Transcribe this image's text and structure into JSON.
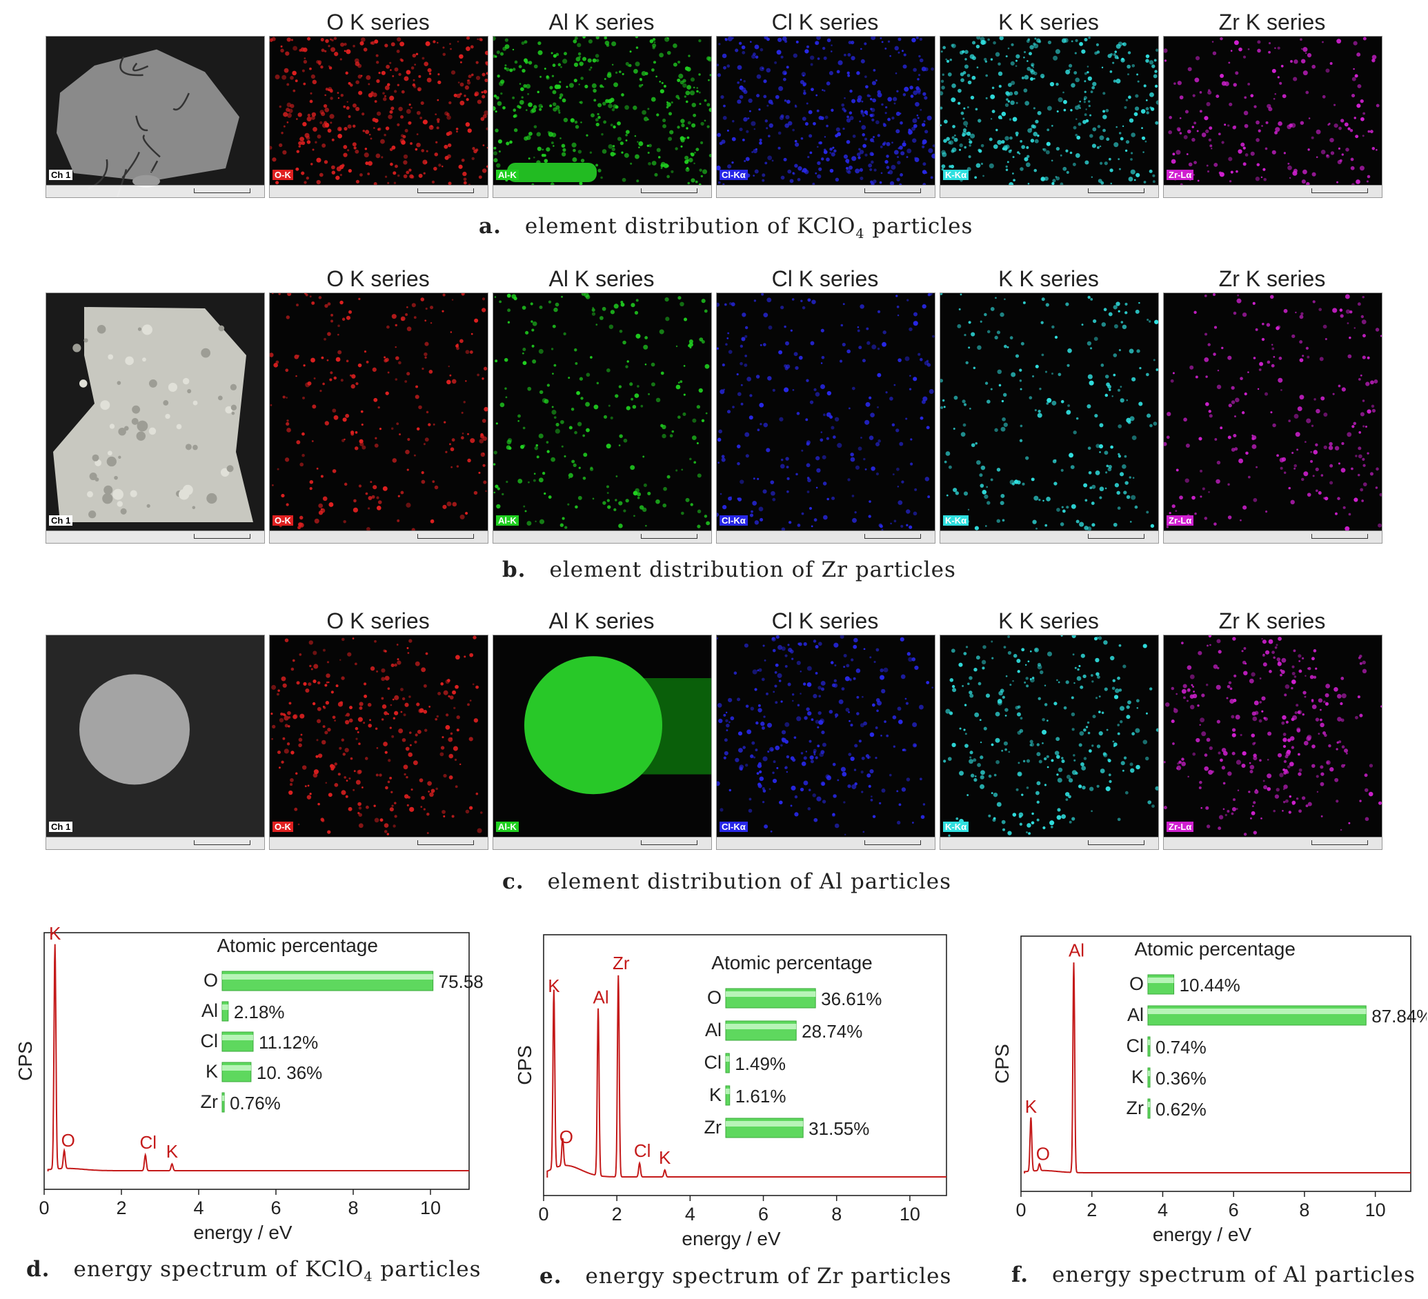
{
  "column_titles": [
    "O K series",
    "Al K series",
    "Cl K series",
    "K K series",
    "Zr K series"
  ],
  "panels": [
    {
      "label": "a.",
      "caption_pre": "element distribution of KClO",
      "caption_sub": "4",
      "caption_post": " particles",
      "tile_labels": [
        "Ch 1",
        "O-K",
        "Al-K",
        "Cl-Kα",
        "K-Kα",
        "Zr-Lα"
      ]
    },
    {
      "label": "b.",
      "caption_pre": "element distribution of Zr particles",
      "caption_sub": "",
      "caption_post": "",
      "tile_labels": [
        "Ch 1",
        "O-K",
        "Al-K",
        "Cl-Kα",
        "K-Kα",
        "Zr-Lα"
      ]
    },
    {
      "label": "c.",
      "caption_pre": "element distribution of Al particles",
      "caption_sub": "",
      "caption_post": "",
      "tile_labels": [
        "Ch 1",
        "O-K",
        "Al-K",
        "Cl-Kα",
        "K-Kα",
        "Zr-Lα"
      ]
    }
  ],
  "map_colors": {
    "sem": "#808080",
    "O": "#e02020",
    "Al": "#20d020",
    "Cl": "#2828e8",
    "K": "#30e0e0",
    "Zr": "#d020d0"
  },
  "spectra_captions": [
    {
      "label": "d.",
      "pre": "energy spectrum of KClO",
      "sub": "4",
      "post": " particles"
    },
    {
      "label": "e.",
      "pre": "energy spectrum of Zr particles",
      "sub": "",
      "post": ""
    },
    {
      "label": "f.",
      "pre": "energy spectrum of Al particles",
      "sub": "",
      "post": ""
    }
  ],
  "chart_data": [
    {
      "type": "line",
      "xlabel": "energy / eV",
      "ylabel": "CPS",
      "xlim": [
        0,
        11
      ],
      "xticks": [
        0,
        2,
        4,
        6,
        8,
        10
      ],
      "peaks": [
        {
          "x": 0.28,
          "h": 1.0
        },
        {
          "x": 0.52,
          "h": 0.08
        },
        {
          "x": 2.62,
          "h": 0.07
        },
        {
          "x": 3.31,
          "h": 0.03
        }
      ],
      "peak_labels": [
        {
          "text": "K",
          "x": 0.28,
          "h": 1.0
        },
        {
          "text": "O",
          "x": 0.62,
          "h": 0.08
        },
        {
          "text": "Cl",
          "x": 2.62,
          "h": 0.07
        },
        {
          "text": "K",
          "x": 3.31,
          "h": 0.03
        }
      ],
      "inset": {
        "title": "Atomic percentage",
        "bars": [
          {
            "element": "O",
            "value": 75.58,
            "label": "75.58%"
          },
          {
            "element": "Al",
            "value": 2.18,
            "label": "2.18%"
          },
          {
            "element": "Cl",
            "value": 11.12,
            "label": "11.12%"
          },
          {
            "element": "K",
            "value": 10.36,
            "label": "10. 36%"
          },
          {
            "element": "Zr",
            "value": 0.76,
            "label": "0.76%"
          }
        ]
      }
    },
    {
      "type": "line",
      "xlabel": "energy / eV",
      "ylabel": "CPS",
      "xlim": [
        0,
        11
      ],
      "xticks": [
        0,
        2,
        4,
        6,
        8,
        10
      ],
      "peaks": [
        {
          "x": 0.28,
          "h": 0.78
        },
        {
          "x": 0.52,
          "h": 0.12
        },
        {
          "x": 1.49,
          "h": 0.73
        },
        {
          "x": 2.04,
          "h": 0.88
        },
        {
          "x": 2.62,
          "h": 0.06
        },
        {
          "x": 3.31,
          "h": 0.03
        }
      ],
      "peak_labels": [
        {
          "text": "K",
          "x": 0.28,
          "h": 0.78
        },
        {
          "text": "O",
          "x": 0.62,
          "h": 0.12
        },
        {
          "text": "Al",
          "x": 1.49,
          "h": 0.73
        },
        {
          "text": "Zr",
          "x": 2.04,
          "h": 0.88
        },
        {
          "text": "Cl",
          "x": 2.62,
          "h": 0.06
        },
        {
          "text": "K",
          "x": 3.31,
          "h": 0.03
        }
      ],
      "inset": {
        "title": "Atomic percentage",
        "bars": [
          {
            "element": "O",
            "value": 36.61,
            "label": "36.61%"
          },
          {
            "element": "Al",
            "value": 28.74,
            "label": "28.74%"
          },
          {
            "element": "Cl",
            "value": 1.49,
            "label": "1.49%"
          },
          {
            "element": "K",
            "value": 1.61,
            "label": "1.61%"
          },
          {
            "element": "Zr",
            "value": 31.55,
            "label": "31.55%"
          }
        ]
      }
    },
    {
      "type": "line",
      "xlabel": "energy / eV",
      "ylabel": "CPS",
      "xlim": [
        0,
        11
      ],
      "xticks": [
        0,
        2,
        4,
        6,
        8,
        10
      ],
      "peaks": [
        {
          "x": 0.28,
          "h": 0.24
        },
        {
          "x": 0.52,
          "h": 0.03
        },
        {
          "x": 1.49,
          "h": 0.94
        }
      ],
      "peak_labels": [
        {
          "text": "K",
          "x": 0.28,
          "h": 0.24
        },
        {
          "text": "O",
          "x": 0.62,
          "h": 0.03
        },
        {
          "text": "Al",
          "x": 1.49,
          "h": 0.94
        }
      ],
      "inset": {
        "title": "Atomic percentage",
        "bars": [
          {
            "element": "O",
            "value": 10.44,
            "label": "10.44%"
          },
          {
            "element": "Al",
            "value": 87.84,
            "label": "87.84%"
          },
          {
            "element": "Cl",
            "value": 0.74,
            "label": "0.74%"
          },
          {
            "element": "K",
            "value": 0.36,
            "label": "0.36%"
          },
          {
            "element": "Zr",
            "value": 0.62,
            "label": "0.62%"
          }
        ]
      }
    }
  ]
}
